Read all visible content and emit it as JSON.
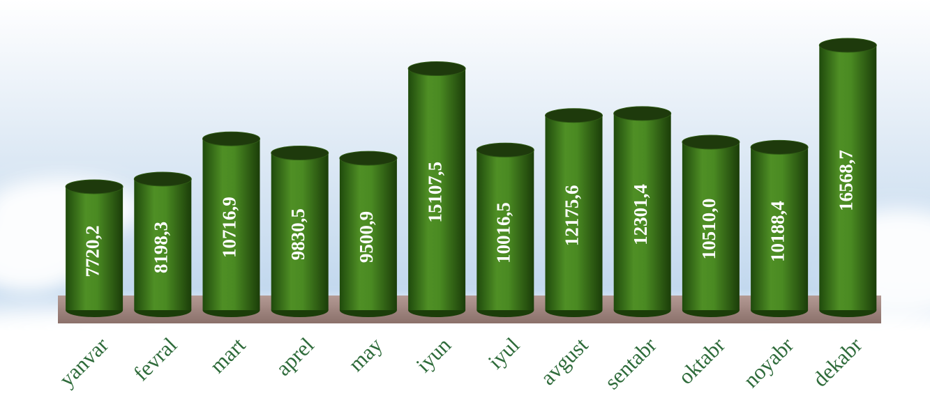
{
  "chart_data": {
    "type": "bar",
    "categories": [
      "yanvar",
      "fevral",
      "mart",
      "aprel",
      "may",
      "iyun",
      "iyul",
      "avgust",
      "sentabr",
      "oktabr",
      "noyabr",
      "dekabr"
    ],
    "values": [
      7720.2,
      8198.3,
      10716.9,
      9830.5,
      9500.9,
      15107.5,
      10016.5,
      12175.6,
      12301.4,
      10510.0,
      10188.4,
      16568.7
    ],
    "value_labels": [
      "7720,2",
      "8198,3",
      "10716,9",
      "9830,5",
      "9500,9",
      "15107,5",
      "10016,5",
      "12175,6",
      "12301,4",
      "10510,0",
      "10188,4",
      "16568,7"
    ],
    "color": "#4a8a22"
  }
}
